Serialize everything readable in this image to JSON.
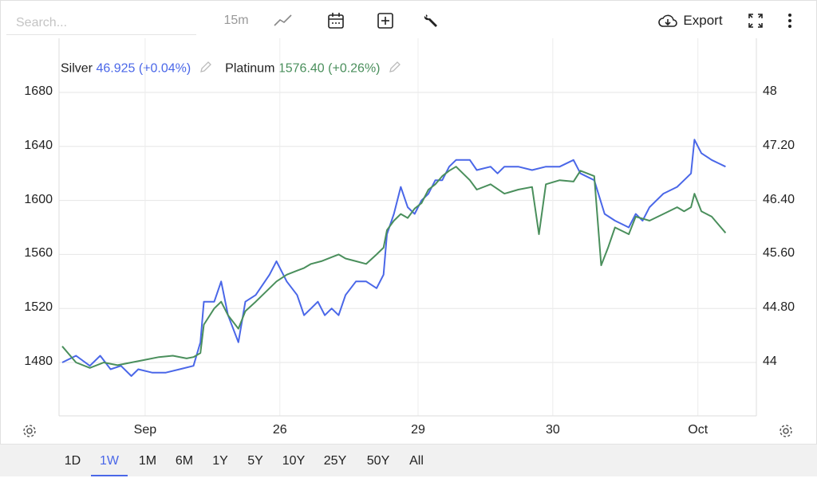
{
  "search": {
    "placeholder": "Search..."
  },
  "toolbar": {
    "interval": "15m",
    "export_label": "Export"
  },
  "legend": [
    {
      "name": "Silver",
      "value": "46.925",
      "change": "(+0.04%)",
      "color": "#4a67e8"
    },
    {
      "name": "Platinum",
      "value": "1576.40",
      "change": "(+0.26%)",
      "color": "#4a8f5c"
    }
  ],
  "ranges": [
    "1D",
    "1W",
    "1M",
    "6M",
    "1Y",
    "5Y",
    "10Y",
    "25Y",
    "50Y",
    "All"
  ],
  "active_range": "1W",
  "chart_data": {
    "type": "line",
    "grid": true,
    "x_tick_labels": [
      "Sep",
      "26",
      "29",
      "30",
      "Oct"
    ],
    "x_tick_positions": [
      0.12,
      0.315,
      0.515,
      0.71,
      0.92
    ],
    "left_axis": {
      "ticks": [
        "1680",
        "1640",
        "1600",
        "1560",
        "1520",
        "1480"
      ],
      "range": [
        1460,
        1692
      ]
    },
    "right_axis": {
      "ticks": [
        "48",
        "47.20",
        "46.40",
        "45.60",
        "44.80",
        "44"
      ],
      "range": [
        43.6,
        48.24
      ]
    },
    "series": [
      {
        "name": "Silver",
        "axis": "right",
        "color": "#4a67e8",
        "points": [
          [
            0.0,
            44.0
          ],
          [
            0.02,
            44.1
          ],
          [
            0.04,
            43.95
          ],
          [
            0.055,
            44.1
          ],
          [
            0.07,
            43.9
          ],
          [
            0.085,
            43.95
          ],
          [
            0.1,
            43.8
          ],
          [
            0.11,
            43.9
          ],
          [
            0.13,
            43.85
          ],
          [
            0.15,
            43.85
          ],
          [
            0.17,
            43.9
          ],
          [
            0.19,
            43.95
          ],
          [
            0.2,
            44.3
          ],
          [
            0.205,
            44.9
          ],
          [
            0.22,
            44.9
          ],
          [
            0.23,
            45.2
          ],
          [
            0.24,
            44.7
          ],
          [
            0.255,
            44.3
          ],
          [
            0.265,
            44.9
          ],
          [
            0.28,
            45.0
          ],
          [
            0.3,
            45.3
          ],
          [
            0.31,
            45.5
          ],
          [
            0.325,
            45.2
          ],
          [
            0.34,
            45.0
          ],
          [
            0.35,
            44.7
          ],
          [
            0.36,
            44.8
          ],
          [
            0.37,
            44.9
          ],
          [
            0.38,
            44.7
          ],
          [
            0.39,
            44.8
          ],
          [
            0.4,
            44.7
          ],
          [
            0.41,
            45.0
          ],
          [
            0.425,
            45.2
          ],
          [
            0.44,
            45.2
          ],
          [
            0.455,
            45.1
          ],
          [
            0.465,
            45.3
          ],
          [
            0.47,
            45.9
          ],
          [
            0.48,
            46.2
          ],
          [
            0.49,
            46.6
          ],
          [
            0.5,
            46.3
          ],
          [
            0.51,
            46.2
          ],
          [
            0.52,
            46.4
          ],
          [
            0.53,
            46.5
          ],
          [
            0.54,
            46.7
          ],
          [
            0.55,
            46.7
          ],
          [
            0.56,
            46.9
          ],
          [
            0.57,
            47.0
          ],
          [
            0.59,
            47.0
          ],
          [
            0.6,
            46.85
          ],
          [
            0.62,
            46.9
          ],
          [
            0.63,
            46.8
          ],
          [
            0.64,
            46.9
          ],
          [
            0.66,
            46.9
          ],
          [
            0.68,
            46.85
          ],
          [
            0.7,
            46.9
          ],
          [
            0.72,
            46.9
          ],
          [
            0.74,
            47.0
          ],
          [
            0.75,
            46.8
          ],
          [
            0.77,
            46.7
          ],
          [
            0.785,
            46.2
          ],
          [
            0.8,
            46.1
          ],
          [
            0.82,
            46.0
          ],
          [
            0.83,
            46.2
          ],
          [
            0.84,
            46.1
          ],
          [
            0.85,
            46.3
          ],
          [
            0.87,
            46.5
          ],
          [
            0.89,
            46.6
          ],
          [
            0.9,
            46.7
          ],
          [
            0.91,
            46.8
          ],
          [
            0.915,
            47.3
          ],
          [
            0.925,
            47.1
          ],
          [
            0.94,
            47.0
          ],
          [
            0.95,
            46.95
          ],
          [
            0.96,
            46.9
          ]
        ]
      },
      {
        "name": "Platinum",
        "axis": "left",
        "color": "#4a8f5c",
        "points": [
          [
            0.0,
            1492
          ],
          [
            0.02,
            1480
          ],
          [
            0.04,
            1476
          ],
          [
            0.06,
            1480
          ],
          [
            0.08,
            1478
          ],
          [
            0.1,
            1480
          ],
          [
            0.12,
            1482
          ],
          [
            0.14,
            1484
          ],
          [
            0.16,
            1485
          ],
          [
            0.18,
            1483
          ],
          [
            0.19,
            1484
          ],
          [
            0.2,
            1487
          ],
          [
            0.205,
            1508
          ],
          [
            0.22,
            1520
          ],
          [
            0.23,
            1525
          ],
          [
            0.24,
            1515
          ],
          [
            0.255,
            1505
          ],
          [
            0.265,
            1518
          ],
          [
            0.28,
            1525
          ],
          [
            0.3,
            1535
          ],
          [
            0.31,
            1540
          ],
          [
            0.325,
            1545
          ],
          [
            0.34,
            1548
          ],
          [
            0.35,
            1550
          ],
          [
            0.36,
            1553
          ],
          [
            0.375,
            1555
          ],
          [
            0.39,
            1558
          ],
          [
            0.4,
            1560
          ],
          [
            0.41,
            1557
          ],
          [
            0.425,
            1555
          ],
          [
            0.44,
            1553
          ],
          [
            0.455,
            1560
          ],
          [
            0.465,
            1565
          ],
          [
            0.47,
            1578
          ],
          [
            0.48,
            1585
          ],
          [
            0.49,
            1590
          ],
          [
            0.5,
            1587
          ],
          [
            0.51,
            1594
          ],
          [
            0.52,
            1598
          ],
          [
            0.53,
            1608
          ],
          [
            0.54,
            1612
          ],
          [
            0.55,
            1618
          ],
          [
            0.56,
            1622
          ],
          [
            0.57,
            1625
          ],
          [
            0.59,
            1615
          ],
          [
            0.6,
            1608
          ],
          [
            0.62,
            1612
          ],
          [
            0.64,
            1605
          ],
          [
            0.66,
            1608
          ],
          [
            0.68,
            1610
          ],
          [
            0.69,
            1575
          ],
          [
            0.7,
            1612
          ],
          [
            0.72,
            1615
          ],
          [
            0.74,
            1614
          ],
          [
            0.75,
            1622
          ],
          [
            0.77,
            1618
          ],
          [
            0.78,
            1552
          ],
          [
            0.79,
            1565
          ],
          [
            0.8,
            1580
          ],
          [
            0.82,
            1575
          ],
          [
            0.83,
            1588
          ],
          [
            0.85,
            1585
          ],
          [
            0.87,
            1590
          ],
          [
            0.89,
            1595
          ],
          [
            0.9,
            1592
          ],
          [
            0.91,
            1595
          ],
          [
            0.915,
            1605
          ],
          [
            0.925,
            1592
          ],
          [
            0.94,
            1588
          ],
          [
            0.95,
            1582
          ],
          [
            0.96,
            1576
          ]
        ]
      }
    ]
  }
}
